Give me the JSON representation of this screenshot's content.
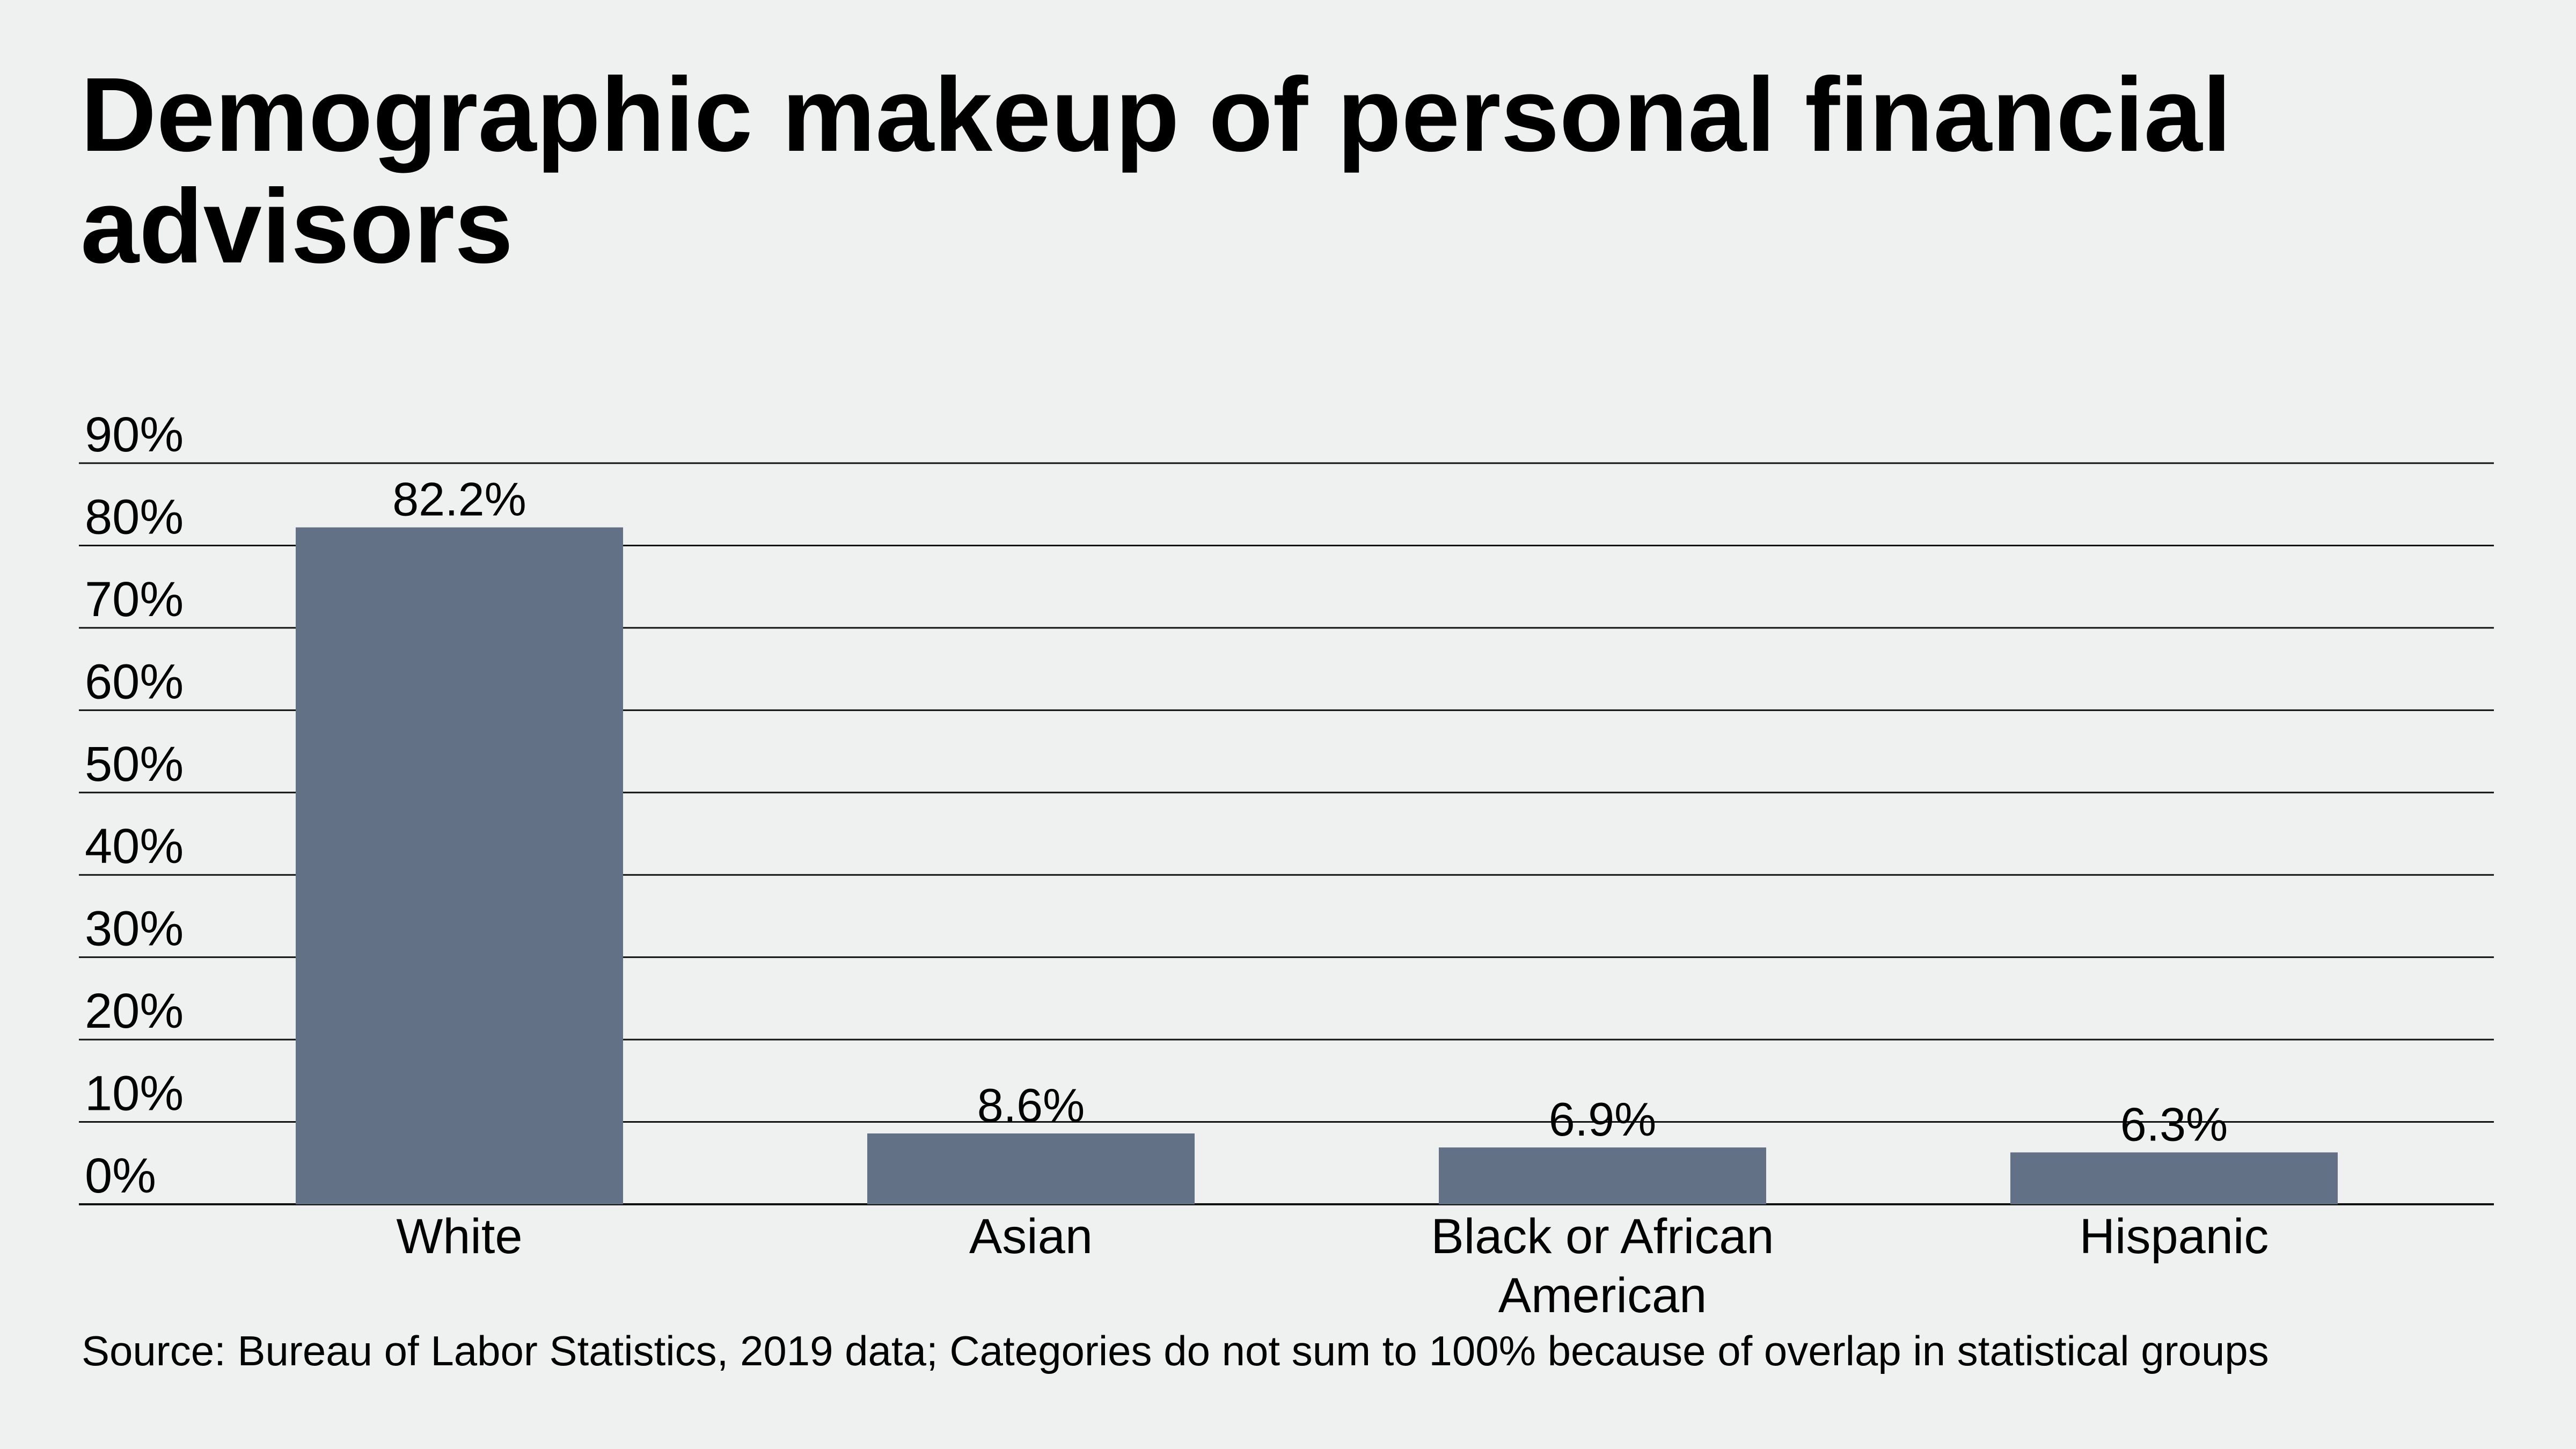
{
  "chart_data": {
    "type": "bar",
    "title": "Demographic makeup of personal financial advisors",
    "categories": [
      "White",
      "Asian",
      "Black or African American",
      "Hispanic"
    ],
    "category_lines": [
      [
        "White"
      ],
      [
        "Asian"
      ],
      [
        "Black or African",
        "American"
      ],
      [
        "Hispanic"
      ]
    ],
    "values": [
      82.2,
      8.6,
      6.9,
      6.3
    ],
    "data_labels": [
      "82.2%",
      "8.6%",
      "6.9%",
      "6.3%"
    ],
    "yticks": [
      0,
      10,
      20,
      30,
      40,
      50,
      60,
      70,
      80,
      90
    ],
    "ytick_labels": [
      "0%",
      "10%",
      "20%",
      "30%",
      "40%",
      "50%",
      "60%",
      "70%",
      "80%",
      "90%"
    ],
    "ylim": [
      0,
      90
    ],
    "xlabel": "",
    "ylabel": "",
    "grid": true,
    "bar_color": "#637186",
    "source": "Source: Bureau of Labor Statistics, 2019 data; Categories do not sum to 100% because of overlap in statistical groups"
  }
}
